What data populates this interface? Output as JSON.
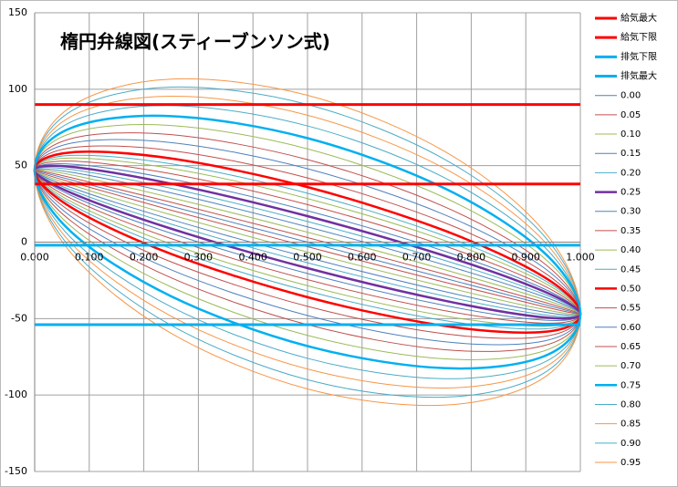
{
  "chart_data": {
    "type": "line",
    "title": "楕円弁線図(スティーブンソン式)",
    "x": [
      0,
      0.067,
      0.25,
      0.5,
      0.75,
      0.933,
      1,
      0.933,
      0.75,
      0.5,
      0.25,
      0.067
    ],
    "closed": true,
    "xlim": [
      0,
      1
    ],
    "xticks": [
      {
        "value": 0,
        "label": "0.000"
      },
      {
        "value": 0.1,
        "label": "0.100"
      },
      {
        "value": 0.2,
        "label": "0.200"
      },
      {
        "value": 0.3,
        "label": "0.300"
      },
      {
        "value": 0.4,
        "label": "0.400"
      },
      {
        "value": 0.5,
        "label": "0.500"
      },
      {
        "value": 0.6,
        "label": "0.600"
      },
      {
        "value": 0.7,
        "label": "0.700"
      },
      {
        "value": 0.8,
        "label": "0.800"
      },
      {
        "value": 0.9,
        "label": "0.900"
      },
      {
        "value": 1,
        "label": "1.000"
      }
    ],
    "ylim": [
      -150,
      150
    ],
    "yticks": [
      -150,
      -100,
      -50,
      0,
      50,
      100,
      150
    ],
    "grid": true,
    "legend": "right",
    "series": [
      {
        "name": "給気最大",
        "color": "#ff0000",
        "width": 3,
        "x": [
          0,
          1
        ],
        "values": [
          90,
          90
        ]
      },
      {
        "name": "給気下限",
        "color": "#ff0000",
        "width": 3,
        "x": [
          0,
          1
        ],
        "values": [
          38,
          38
        ]
      },
      {
        "name": "排気下限",
        "color": "#00b0f0",
        "width": 3,
        "x": [
          0,
          1
        ],
        "values": [
          -2,
          -2
        ]
      },
      {
        "name": "排気最大",
        "color": "#00b0f0",
        "width": 3,
        "x": [
          0,
          1
        ],
        "values": [
          -54,
          -54
        ]
      },
      {
        "name": "0.00",
        "color": "#4f81bd",
        "width": 1,
        "values": [
          47,
          40.7,
          23.5,
          0,
          -23.5,
          -40.7,
          -47,
          -40.7,
          -23.5,
          0,
          23.5,
          40.7
        ]
      },
      {
        "name": "0.05",
        "color": "#c0504d",
        "width": 1,
        "values": [
          47,
          42.2,
          26.1,
          3,
          -20.9,
          -39.2,
          -47,
          -42.2,
          -26.1,
          -3,
          20.9,
          39.2
        ]
      },
      {
        "name": "0.10",
        "color": "#9bbb59",
        "width": 1,
        "values": [
          47,
          44.0,
          29.1,
          6.5,
          -17.9,
          -37.5,
          -47,
          -44.0,
          -29.1,
          -6.5,
          17.9,
          37.5
        ]
      },
      {
        "name": "0.15",
        "color": "#4f81bd",
        "width": 1,
        "values": [
          47,
          45.7,
          32.2,
          10,
          -14.8,
          -35.7,
          -47,
          -45.7,
          -32.2,
          -10,
          14.8,
          35.7
        ]
      },
      {
        "name": "0.20",
        "color": "#4bacc6",
        "width": 1,
        "values": [
          47,
          47.5,
          35.2,
          13.5,
          -11.8,
          -34.0,
          -47,
          -47.5,
          -35.2,
          -13.5,
          11.8,
          34.0
        ]
      },
      {
        "name": "0.25",
        "color": "#7030a0",
        "width": 2.5,
        "values": [
          47,
          49.2,
          38.2,
          17,
          -8.8,
          -32.2,
          -47,
          -49.2,
          -38.2,
          -17,
          8.8,
          32.2
        ]
      },
      {
        "name": "0.30",
        "color": "#4f81bd",
        "width": 1,
        "values": [
          47,
          51.0,
          41.3,
          20.5,
          -5.8,
          -30.5,
          -47,
          -51.0,
          -41.3,
          -20.5,
          5.8,
          30.5
        ]
      },
      {
        "name": "0.35",
        "color": "#c0504d",
        "width": 1,
        "values": [
          47,
          53.0,
          44.7,
          24.5,
          -2.3,
          -28.5,
          -47,
          -53.0,
          -44.7,
          -24.5,
          2.3,
          28.5
        ]
      },
      {
        "name": "0.40",
        "color": "#9bbb59",
        "width": 1,
        "values": [
          47,
          55.0,
          48.2,
          28.5,
          1.2,
          -26.5,
          -47,
          -55.0,
          -48.2,
          -28.5,
          -1.2,
          26.5
        ]
      },
      {
        "name": "0.45",
        "color": "#4bacc6",
        "width": 1,
        "values": [
          47,
          56.7,
          51.2,
          32,
          4.2,
          -24.7,
          -47,
          -56.7,
          -51.2,
          -32,
          -4.2,
          24.7
        ]
      },
      {
        "name": "0.50",
        "color": "#ff0000",
        "width": 2.5,
        "values": [
          47,
          58.7,
          54.7,
          36,
          7.7,
          -22.7,
          -47,
          -58.7,
          -54.7,
          -36,
          -7.7,
          22.7
        ]
      },
      {
        "name": "0.55",
        "color": "#c0504d",
        "width": 1,
        "values": [
          47,
          61.7,
          59.9,
          42,
          12.9,
          -19.7,
          -47,
          -61.7,
          -59.9,
          -42,
          -12.9,
          19.7
        ]
      },
      {
        "name": "0.60",
        "color": "#4f81bd",
        "width": 1,
        "values": [
          47,
          64.7,
          65.1,
          48,
          18.1,
          -16.7,
          -47,
          -64.7,
          -65.1,
          -48,
          -18.1,
          16.7
        ]
      },
      {
        "name": "0.65",
        "color": "#c0504d",
        "width": 1,
        "values": [
          47,
          67.7,
          70.3,
          54,
          23.3,
          -13.7,
          -47,
          -67.7,
          -70.3,
          -54,
          -23.3,
          13.7
        ]
      },
      {
        "name": "0.70",
        "color": "#9bbb59",
        "width": 1,
        "values": [
          47,
          71.2,
          76.3,
          61,
          29.3,
          -10.2,
          -47,
          -71.2,
          -76.3,
          -61,
          -29.3,
          10.2
        ]
      },
      {
        "name": "0.75",
        "color": "#00b0f0",
        "width": 2.5,
        "values": [
          47,
          74.7,
          82.4,
          68,
          35.4,
          -6.7,
          -47,
          -74.7,
          -82.4,
          -68,
          -35.4,
          6.7
        ]
      },
      {
        "name": "0.80",
        "color": "#4bacc6",
        "width": 1,
        "values": [
          47,
          78.7,
          89.3,
          76,
          42.3,
          -2.7,
          -47,
          -78.7,
          -89.3,
          -76,
          -42.3,
          2.7
        ]
      },
      {
        "name": "0.85",
        "color": "#f79646",
        "width": 1,
        "values": [
          47,
          82.2,
          95.4,
          83,
          48.4,
          0.8,
          -47,
          -82.2,
          -95.4,
          -83,
          -48.4,
          -0.8
        ]
      },
      {
        "name": "0.90",
        "color": "#4bacc6",
        "width": 1,
        "values": [
          47,
          85.7,
          101.4,
          90,
          54.4,
          4.3,
          -47,
          -85.7,
          -101.4,
          -90,
          -54.4,
          -4.3
        ]
      },
      {
        "name": "0.95",
        "color": "#f79646",
        "width": 1,
        "values": [
          47,
          88.7,
          106.6,
          96,
          59.6,
          7.3,
          -47,
          -88.7,
          -106.6,
          -96,
          -59.6,
          -7.3
        ]
      }
    ]
  }
}
